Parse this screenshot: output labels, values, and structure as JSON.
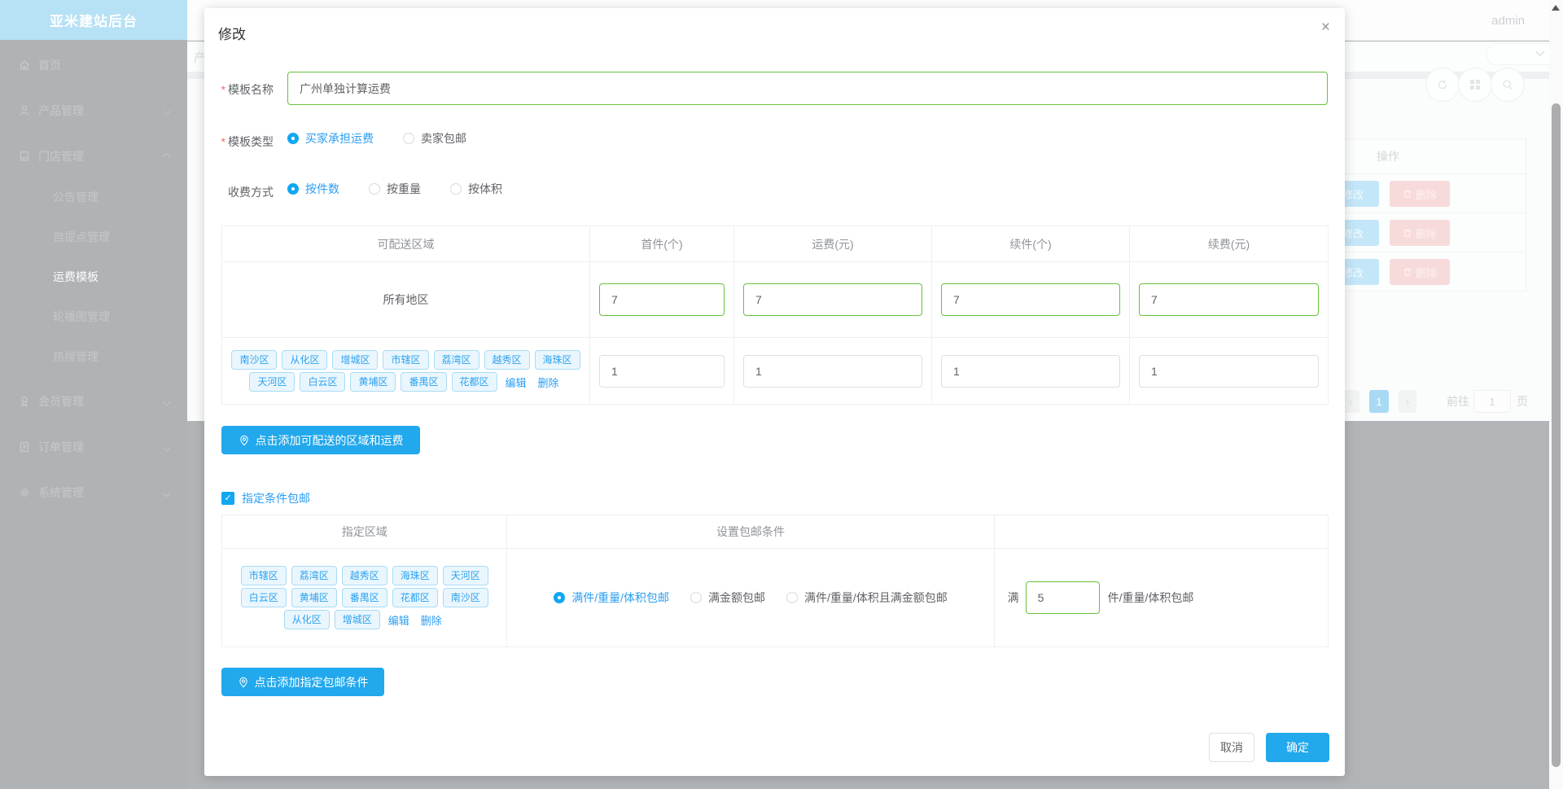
{
  "sidebar": {
    "title": "亚米建站后台",
    "items": [
      {
        "label": "首页",
        "icon": "home-icon"
      },
      {
        "label": "产品管理",
        "icon": "user-icon",
        "chevron": "down"
      },
      {
        "label": "门店管理",
        "icon": "shop-icon",
        "chevron": "up",
        "expanded": true
      },
      {
        "label": "会员管理",
        "icon": "member-icon",
        "chevron": "down"
      },
      {
        "label": "订单管理",
        "icon": "order-icon",
        "chevron": "down"
      },
      {
        "label": "系统管理",
        "icon": "gear-icon",
        "chevron": "down"
      }
    ],
    "submenu": {
      "items": [
        "公告管理",
        "自提点管理",
        "运费模板",
        "轮播图管理",
        "热搜管理"
      ],
      "active": "运费模板"
    }
  },
  "header": {
    "user": "admin",
    "breadcrumb_partial": "产"
  },
  "background": {
    "table": {
      "action_header": "操作",
      "rows": [
        {
          "edit": "修改",
          "delete": "删除"
        },
        {
          "edit": "修改",
          "delete": "删除"
        },
        {
          "edit": "修改",
          "delete": "删除"
        }
      ]
    },
    "pagination": {
      "prev": "‹",
      "next": "›",
      "active_page": "1",
      "goto_label": "前往",
      "goto_value": "1",
      "page_label": "页"
    }
  },
  "modal": {
    "title": "修改",
    "close": "×",
    "fields": {
      "template_name": {
        "label": "模板名称",
        "value": "广州单独计算运费"
      },
      "template_type": {
        "label": "模板类型",
        "options": [
          "买家承担运费",
          "卖家包邮"
        ],
        "selected": "买家承担运费"
      },
      "charge_method": {
        "label": "收费方式",
        "options": [
          "按件数",
          "按重量",
          "按体积"
        ],
        "selected": "按件数"
      }
    },
    "shipping_table": {
      "headers": [
        "可配送区域",
        "首件(个)",
        "运费(元)",
        "续件(个)",
        "续费(元)"
      ],
      "rows": [
        {
          "area": "所有地区",
          "first": "7",
          "fee": "7",
          "additional": "7",
          "additional_fee": "7"
        },
        {
          "regions": [
            "南沙区",
            "从化区",
            "增城区",
            "市辖区",
            "荔湾区",
            "越秀区",
            "海珠区",
            "天河区",
            "白云区",
            "黄埔区",
            "番禺区",
            "花都区"
          ],
          "edit": "编辑",
          "delete": "删除",
          "first": "1",
          "fee": "1",
          "additional": "1",
          "additional_fee": "1"
        }
      ]
    },
    "add_area_button": "点击添加可配送的区域和运费",
    "free_shipping_checkbox": {
      "label": "指定条件包邮",
      "checked": true
    },
    "condition_table": {
      "headers": [
        "指定区域",
        "设置包邮条件",
        ""
      ],
      "row": {
        "regions": [
          "市辖区",
          "荔湾区",
          "越秀区",
          "海珠区",
          "天河区",
          "白云区",
          "黄埔区",
          "番禺区",
          "花都区",
          "南沙区",
          "从化区",
          "增城区"
        ],
        "edit": "编辑",
        "delete": "删除",
        "options": [
          "满件/重量/体积包邮",
          "满金额包邮",
          "满件/重量/体积且满金额包邮"
        ],
        "selected": "满件/重量/体积包邮",
        "threshold_prefix": "满",
        "threshold_value": "5",
        "threshold_suffix": "件/重量/体积包邮"
      }
    },
    "add_condition_button": "点击添加指定包邮条件",
    "footer": {
      "cancel": "取消",
      "confirm": "确定"
    }
  },
  "colors": {
    "primary_text": "#2b9ef3",
    "button_blue": "#22a8ec",
    "success_green": "#67c23a",
    "sidebar_header": "#b7e1f4"
  }
}
